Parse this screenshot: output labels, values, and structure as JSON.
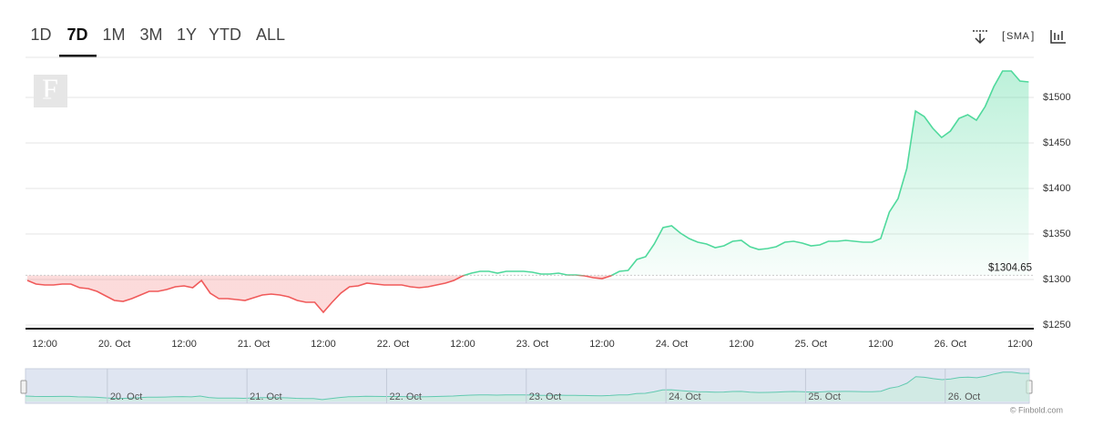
{
  "chart_data": {
    "type": "line",
    "ranges": [
      "1D",
      "7D",
      "1M",
      "3M",
      "1Y",
      "YTD",
      "ALL"
    ],
    "selected_range": "7D",
    "toolbar": {
      "indicator": "SMA"
    },
    "logo": "F",
    "categories": [
      null,
      null,
      "12:00",
      null,
      null,
      null,
      null,
      null,
      null,
      null,
      "20. Oct",
      null,
      null,
      null,
      null,
      null,
      null,
      null,
      "12:00",
      null,
      null,
      null,
      null,
      null,
      null,
      null,
      "21. Oct",
      null,
      null,
      null,
      null,
      null,
      null,
      null,
      "12:00",
      null,
      null,
      null,
      null,
      null,
      null,
      null,
      "22. Oct",
      null,
      null,
      null,
      null,
      null,
      null,
      null,
      "12:00",
      null,
      null,
      null,
      null,
      null,
      null,
      null,
      "23. Oct",
      null,
      null,
      null,
      null,
      null,
      null,
      null,
      "12:00",
      null,
      null,
      null,
      null,
      null,
      null,
      null,
      "24. Oct",
      null,
      null,
      null,
      null,
      null,
      null,
      null,
      "12:00",
      null,
      null,
      null,
      null,
      null,
      null,
      null,
      "25. Oct",
      null,
      null,
      null,
      null,
      null,
      null,
      null,
      "12:00",
      null,
      null,
      null,
      null,
      null,
      null,
      null,
      "26. Oct",
      null,
      null,
      null,
      null,
      null,
      null,
      null,
      "12:00",
      null
    ],
    "series": [
      {
        "values": [
          1299,
          1295,
          1294,
          1294,
          1295,
          1295,
          1291,
          1290,
          1287,
          1282,
          1277,
          1276,
          1279,
          1283,
          1287,
          1287,
          1289,
          1292,
          1293,
          1291,
          1299,
          1285,
          1279,
          1279,
          1278,
          1277,
          1280,
          1283,
          1284,
          1283,
          1281,
          1277,
          1275,
          1275,
          1264,
          1275,
          1285,
          1292,
          1293,
          1296,
          1295,
          1294,
          1294,
          1294,
          1292,
          1291,
          1292,
          1294,
          1296,
          1299,
          1304,
          1307,
          1309,
          1309,
          1307,
          1309,
          1309,
          1309,
          1308,
          1306,
          1306,
          1307,
          1305,
          1305,
          1304,
          1302,
          1301,
          1304,
          1309,
          1310,
          1322,
          1325,
          1339,
          1357,
          1359,
          1351,
          1345,
          1341,
          1339,
          1335,
          1337,
          1342,
          1343,
          1336,
          1333,
          1334,
          1336,
          1341,
          1342,
          1340,
          1337,
          1338,
          1342,
          1342,
          1343,
          1342,
          1341,
          1341,
          1345,
          1374,
          1389,
          1422,
          1485,
          1479,
          1466,
          1456,
          1463,
          1477,
          1481,
          1475,
          1490,
          1512,
          1529,
          1529,
          1518,
          1517
        ]
      }
    ],
    "up_color": "#4fd99c",
    "down_color": "#f05a5a",
    "baseline": 1304.65,
    "baseline_label": "$1304.65",
    "ylim": [
      1246,
      1544
    ],
    "yticks": [
      {
        "value": 1250,
        "label": "$1250"
      },
      {
        "value": 1300,
        "label": "$1300"
      },
      {
        "value": 1350,
        "label": "$1350"
      },
      {
        "value": 1400,
        "label": "$1400"
      },
      {
        "value": 1450,
        "label": "$1450"
      },
      {
        "value": 1500,
        "label": "$1500"
      }
    ],
    "grid": true,
    "navigator": {
      "labels": [
        "20. Oct",
        "21. Oct",
        "22. Oct",
        "23. Oct",
        "24. Oct",
        "25. Oct",
        "26. Oct"
      ]
    },
    "credit": "© Finbold.com"
  }
}
